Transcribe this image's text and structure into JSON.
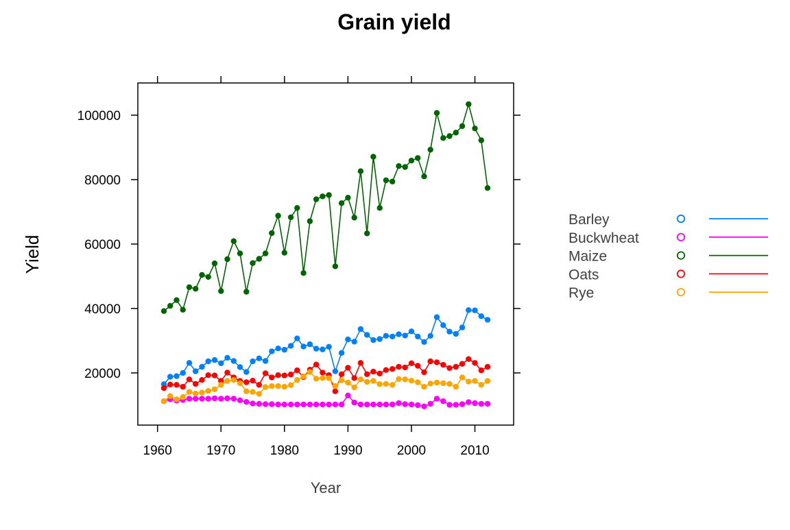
{
  "chart_data": {
    "type": "line",
    "title": "Grain yield",
    "xlabel": "Year",
    "ylabel": "Yield",
    "xlim": [
      1956.9,
      2016.1
    ],
    "ylim": [
      3800,
      110000
    ],
    "x_ticks": [
      1960,
      1970,
      1980,
      1990,
      2000,
      2010
    ],
    "x_tick_labels": [
      "1960",
      "1970",
      "1980",
      "1990",
      "2000",
      "2010"
    ],
    "y_ticks": [
      20000,
      40000,
      60000,
      80000,
      100000
    ],
    "y_tick_labels": [
      "20000",
      "40000",
      "60000",
      "80000",
      "100000"
    ],
    "grid": false,
    "legend_position": "right",
    "x": [
      1961,
      1962,
      1963,
      1964,
      1965,
      1966,
      1967,
      1968,
      1969,
      1970,
      1971,
      1972,
      1973,
      1974,
      1975,
      1976,
      1977,
      1978,
      1979,
      1980,
      1981,
      1982,
      1983,
      1984,
      1985,
      1986,
      1987,
      1988,
      1989,
      1990,
      1991,
      1992,
      1993,
      1994,
      1995,
      1996,
      1997,
      1998,
      1999,
      2000,
      2001,
      2002,
      2003,
      2004,
      2005,
      2006,
      2007,
      2008,
      2009,
      2010,
      2011,
      2012
    ],
    "series": [
      {
        "name": "Barley",
        "color": "#0080FF",
        "values": [
          16500,
          18800,
          19000,
          20000,
          23100,
          20500,
          21900,
          23600,
          24000,
          23000,
          24700,
          23700,
          21800,
          20300,
          23600,
          24500,
          23700,
          26700,
          27600,
          27200,
          28400,
          30700,
          28200,
          28900,
          27500,
          27300,
          28100,
          20500,
          26200,
          30400,
          29700,
          33600,
          31800,
          30200,
          30500,
          31500,
          31300,
          32000,
          31600,
          32900,
          31300,
          29600,
          31500,
          37300,
          34800,
          32800,
          32100,
          34100,
          39500,
          39400,
          37600,
          36500
        ]
      },
      {
        "name": "Buckwheat",
        "color": "#FF00FF",
        "values": [
          11200,
          11800,
          11400,
          11600,
          12000,
          12000,
          12000,
          12000,
          12100,
          12000,
          12100,
          12000,
          11500,
          11000,
          10500,
          10400,
          10300,
          10300,
          10200,
          10200,
          10200,
          10200,
          10200,
          10200,
          10200,
          10200,
          10200,
          10200,
          10200,
          13000,
          10800,
          10200,
          10200,
          10200,
          10200,
          10200,
          10200,
          10600,
          10300,
          10200,
          10000,
          9600,
          10400,
          12000,
          11200,
          10100,
          10100,
          10300,
          10900,
          10600,
          10400,
          10400
        ]
      },
      {
        "name": "Maize",
        "color": "#006400",
        "values": [
          39200,
          40800,
          42600,
          39600,
          46600,
          46100,
          50400,
          49800,
          54000,
          45400,
          55300,
          60900,
          57100,
          45200,
          54100,
          55400,
          57100,
          63400,
          68800,
          57300,
          68300,
          71200,
          51000,
          67100,
          73900,
          74800,
          75200,
          53100,
          72700,
          74400,
          68200,
          82600,
          63300,
          87100,
          71200,
          79800,
          79400,
          84200,
          83900,
          85900,
          86700,
          81000,
          89300,
          100700,
          92900,
          93500,
          94600,
          96600,
          103400,
          95900,
          92200,
          77400
        ]
      },
      {
        "name": "Oats",
        "color": "#FF0000",
        "values": [
          15300,
          16400,
          16300,
          15700,
          18000,
          16600,
          17800,
          19300,
          19200,
          17500,
          20100,
          18600,
          17500,
          17100,
          17600,
          16300,
          19900,
          18600,
          19300,
          19200,
          19500,
          20800,
          18700,
          21000,
          22600,
          20100,
          19300,
          14300,
          19600,
          21600,
          18400,
          23100,
          19600,
          20400,
          19800,
          20900,
          21200,
          21900,
          21700,
          23000,
          22200,
          20200,
          23600,
          23300,
          22500,
          21500,
          21900,
          22800,
          24300,
          23100,
          20800,
          21900
        ]
      },
      {
        "name": "Rye",
        "color": "#FFA500",
        "values": [
          11200,
          12800,
          11800,
          12500,
          14100,
          13600,
          13900,
          14400,
          14900,
          16300,
          17500,
          17800,
          16800,
          14300,
          14100,
          13500,
          15600,
          15900,
          15900,
          15700,
          16200,
          17800,
          18900,
          20300,
          18200,
          18400,
          18400,
          15900,
          17700,
          17000,
          15500,
          18000,
          17200,
          17500,
          16500,
          16600,
          16300,
          18100,
          18000,
          17600,
          17100,
          15700,
          16700,
          17000,
          16800,
          16600,
          15700,
          18600,
          17300,
          17500,
          16300,
          17500
        ]
      }
    ]
  }
}
